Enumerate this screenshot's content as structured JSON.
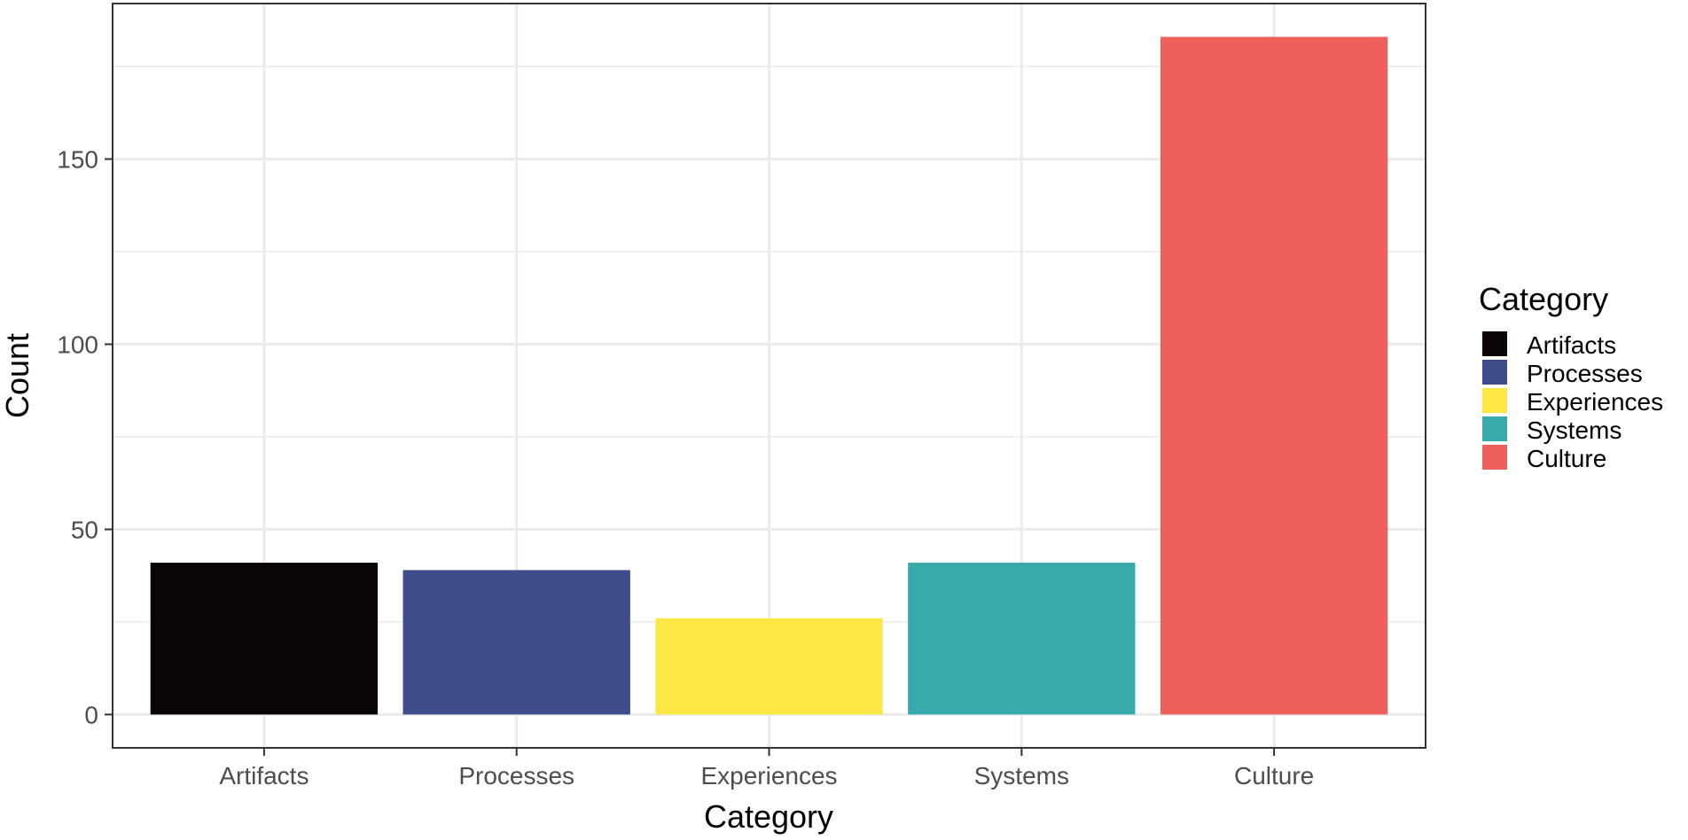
{
  "chart_data": {
    "type": "bar",
    "title": "",
    "xlabel": "Category",
    "ylabel": "Count",
    "categories": [
      "Artifacts",
      "Processes",
      "Experiences",
      "Systems",
      "Culture"
    ],
    "values": [
      41,
      39,
      26,
      41,
      183
    ],
    "colors": [
      "#0b0405",
      "#404b8c",
      "#fde745",
      "#39aaac",
      "#ef605d"
    ],
    "ylim": [
      -9,
      192
    ],
    "yticks": [
      0,
      50,
      100,
      150
    ],
    "ytick_labels": [
      "0",
      "50",
      "100",
      "150"
    ],
    "grid": true,
    "legend": {
      "title": "Category",
      "position": "right",
      "entries": [
        "Artifacts",
        "Processes",
        "Experiences",
        "Systems",
        "Culture"
      ]
    }
  }
}
